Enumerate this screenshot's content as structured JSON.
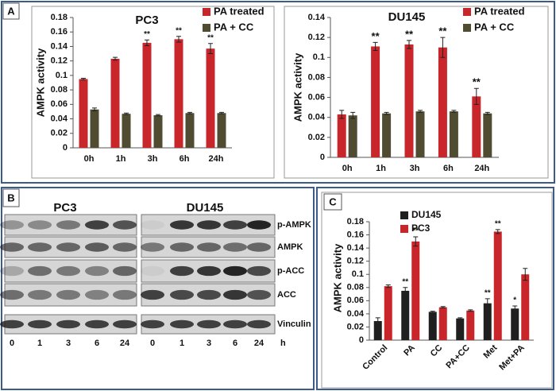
{
  "panel_labels": [
    "A",
    "B",
    "C"
  ],
  "chart_data": [
    {
      "type": "bar",
      "title": "PC3",
      "y_label": "AMPK activity",
      "categories": [
        "0h",
        "1h",
        "3h",
        "6h",
        "24h"
      ],
      "series": [
        {
          "name": "PA treated",
          "color": "#c8262b",
          "values": [
            0.095,
            0.123,
            0.145,
            0.15,
            0.137
          ],
          "errors": [
            0.001,
            0.002,
            0.004,
            0.004,
            0.007
          ],
          "significance": [
            null,
            null,
            "**",
            "**",
            "**"
          ]
        },
        {
          "name": "PA + CC",
          "color": "#4f4c32",
          "values": [
            0.053,
            0.047,
            0.045,
            0.048,
            0.048
          ],
          "errors": [
            0.002,
            0.001,
            0.001,
            0.001,
            0.001
          ]
        }
      ],
      "ylim": [
        0,
        0.18
      ],
      "yticks": [
        0,
        0.02,
        0.04,
        0.06,
        0.08,
        0.1,
        0.12,
        0.14,
        0.16,
        0.18
      ],
      "grid": false,
      "legend": "upper right"
    },
    {
      "type": "bar",
      "title": "DU145",
      "y_label": "AMPK activity",
      "categories": [
        "0h",
        "1h",
        "3h",
        "6h",
        "24h"
      ],
      "series": [
        {
          "name": "PA treated",
          "color": "#c8262b",
          "values": [
            0.043,
            0.111,
            0.113,
            0.11,
            0.061
          ],
          "errors": [
            0.004,
            0.004,
            0.004,
            0.01,
            0.008
          ],
          "significance": [
            null,
            "**",
            "**",
            "**",
            "**"
          ]
        },
        {
          "name": "PA + CC",
          "color": "#4f4c32",
          "values": [
            0.042,
            0.044,
            0.046,
            0.046,
            0.044
          ],
          "errors": [
            0.003,
            0.001,
            0.001,
            0.001,
            0.001
          ]
        }
      ],
      "ylim": [
        0,
        0.14
      ],
      "yticks": [
        0,
        0.02,
        0.04,
        0.06,
        0.08,
        0.1,
        0.12,
        0.14
      ],
      "grid": false,
      "legend": "upper right"
    },
    {
      "type": "bar",
      "y_label": "AMPK activity",
      "categories": [
        "Control",
        "PA",
        "CC",
        "PA+CC",
        "Met",
        "Met+PA"
      ],
      "series": [
        {
          "name": "DU145",
          "color": "#1f1f1f",
          "values": [
            0.029,
            0.075,
            0.043,
            0.033,
            0.056,
            0.048
          ],
          "errors": [
            0.005,
            0.005,
            0.001,
            0.001,
            0.007,
            0.004
          ],
          "significance": [
            null,
            "**",
            null,
            null,
            "**",
            "*"
          ]
        },
        {
          "name": "PC3",
          "color": "#c8262b",
          "values": [
            0.082,
            0.15,
            0.05,
            0.045,
            0.165,
            0.1
          ],
          "errors": [
            0.002,
            0.007,
            0.001,
            0.001,
            0.003,
            0.009
          ],
          "significance": [
            null,
            "**",
            null,
            null,
            "**",
            null
          ]
        }
      ],
      "ylim": [
        0,
        0.18
      ],
      "yticks": [
        0,
        0.02,
        0.04,
        0.06,
        0.08,
        0.1,
        0.12,
        0.14,
        0.16,
        0.18
      ],
      "grid": false,
      "legend": "upper center"
    }
  ],
  "blot": {
    "cell_lines": [
      "PC3",
      "DU145"
    ],
    "proteins": [
      "p-AMPK",
      "AMPK",
      "p-ACC",
      "ACC",
      "Vinculin"
    ],
    "lanes": [
      "0",
      "1",
      "3",
      "6",
      "24"
    ],
    "unit": "h"
  }
}
